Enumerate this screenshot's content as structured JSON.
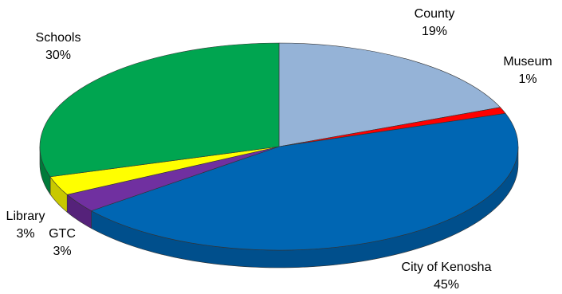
{
  "chart_data": {
    "type": "pie",
    "style": "3d",
    "title": "",
    "legend": "none",
    "slices": [
      {
        "label": "County",
        "value": 19,
        "pct": "19%",
        "color": "#95b3d7",
        "side": "#7791b0"
      },
      {
        "label": "Museum",
        "value": 1,
        "pct": "1%",
        "color": "#ff0000",
        "side": "#c00000"
      },
      {
        "label": "City of Kenosha",
        "value": 45,
        "pct": "45%",
        "color": "#0066b3",
        "side": "#004f8c"
      },
      {
        "label": "GTC",
        "value": 3,
        "pct": "3%",
        "color": "#7030a0",
        "side": "#55227a"
      },
      {
        "label": "Library",
        "value": 3,
        "pct": "3%",
        "color": "#ffff00",
        "side": "#c8c800"
      },
      {
        "label": "Schools",
        "value": 30,
        "pct": "30%",
        "color": "#00a550",
        "side": "#007a3a"
      }
    ]
  }
}
